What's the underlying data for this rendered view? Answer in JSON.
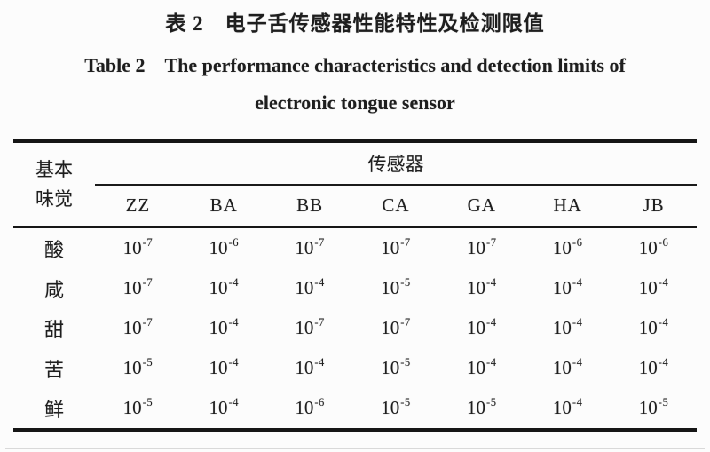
{
  "page": {
    "title_zh": "表 2　电子舌传感器性能特性及检测限值",
    "title_en_line1": "Table 2　The performance characteristics and detection limits of",
    "title_en_line2": "electronic tongue sensor"
  },
  "table": {
    "row_header_line1": "基本",
    "row_header_line2": "味觉",
    "group_header": "传感器",
    "columns": [
      "ZZ",
      "BA",
      "BB",
      "CA",
      "GA",
      "HA",
      "JB"
    ],
    "rows": [
      {
        "taste": "酸",
        "values": [
          "10^-7",
          "10^-6",
          "10^-7",
          "10^-7",
          "10^-7",
          "10^-6",
          "10^-6"
        ]
      },
      {
        "taste": "咸",
        "values": [
          "10^-7",
          "10^-4",
          "10^-4",
          "10^-5",
          "10^-4",
          "10^-4",
          "10^-4"
        ]
      },
      {
        "taste": "甜",
        "values": [
          "10^-7",
          "10^-4",
          "10^-7",
          "10^-7",
          "10^-4",
          "10^-4",
          "10^-4"
        ]
      },
      {
        "taste": "苦",
        "values": [
          "10^-5",
          "10^-4",
          "10^-4",
          "10^-5",
          "10^-4",
          "10^-4",
          "10^-4"
        ]
      },
      {
        "taste": "鲜",
        "values": [
          "10^-5",
          "10^-4",
          "10^-6",
          "10^-5",
          "10^-5",
          "10^-4",
          "10^-5"
        ]
      }
    ]
  }
}
